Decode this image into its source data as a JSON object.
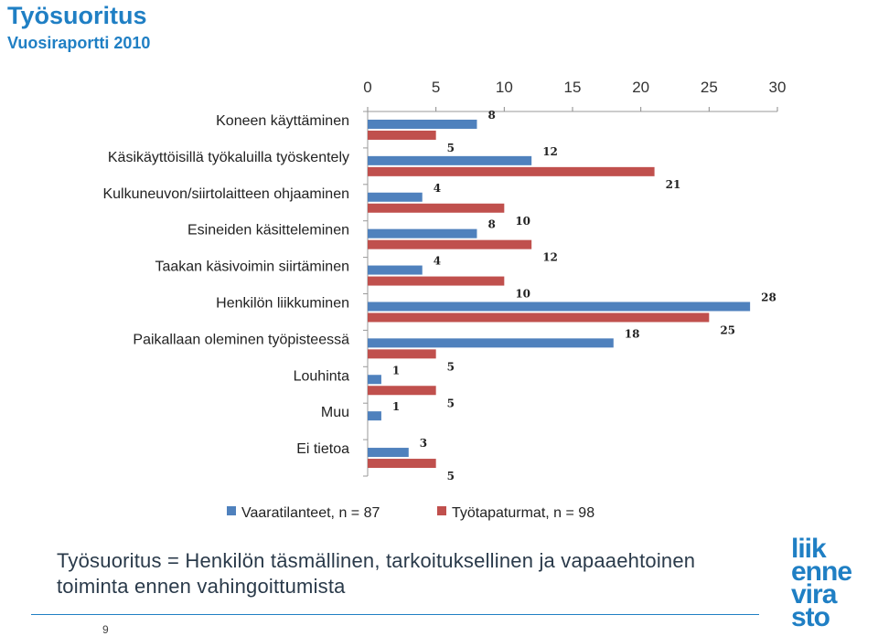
{
  "header": {
    "title": "Työsuoritus",
    "subtitle": "Vuosiraportti 2010"
  },
  "chart_data": {
    "type": "bar",
    "orientation": "horizontal",
    "categories": [
      "Koneen käyttäminen",
      "Käsikäyttöisillä työkaluilla työskentely",
      "Kulkuneuvon/siirtolaitteen ohjaaminen",
      "Esineiden käsitteleminen",
      "Taakan käsivoimin siirtäminen",
      "Henkilön liikkuminen",
      "Paikallaan oleminen työpisteessä",
      "Louhinta",
      "Muu",
      "Ei tietoa"
    ],
    "series": [
      {
        "name": "Vaaratilanteet, n = 87",
        "color": "#4f81bd",
        "values": [
          8,
          12,
          4,
          8,
          4,
          28,
          18,
          1,
          1,
          3
        ]
      },
      {
        "name": "Työtapaturmat, n = 98",
        "color": "#c0504d",
        "values": [
          5,
          21,
          10,
          12,
          10,
          25,
          5,
          5,
          null,
          5
        ]
      }
    ],
    "xlim": [
      0,
      30
    ],
    "xticks": [
      "0",
      "5",
      "10",
      "15",
      "20",
      "25",
      "30"
    ],
    "grid": false,
    "legend": "bottom"
  },
  "caption": "Työsuoritus = Henkilön täsmällinen, tarkoituksellinen ja vapaaehtoinen toiminta ennen vahingoittumista",
  "footer": {
    "page_number": "9"
  },
  "logo": {
    "lines": [
      "liik",
      "enne",
      "vira",
      "sto"
    ],
    "color": "#1f7fc4"
  }
}
